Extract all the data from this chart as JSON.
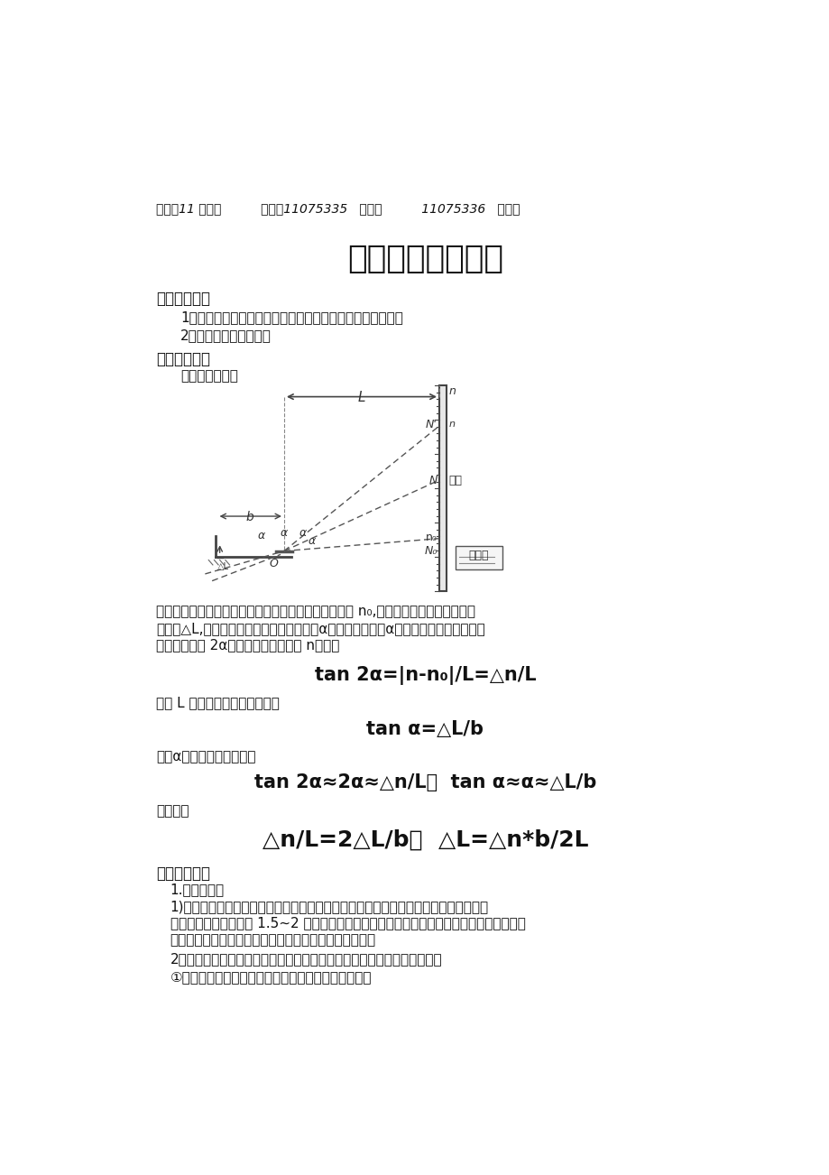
{
  "bg_color": "#ffffff",
  "header_text": "班级：11 级光信          姓名：11075335   倪凯嘉          11075336   刘静宇",
  "title": "玻璃片厚度的测量",
  "s1_title": "一．实验目的",
  "s1_item1": "1）学习光杠杆镜尺法测量微小长度变化的原理和调节方法。",
  "s1_item2": "2）测量玻璃片的厚度。",
  "s2_title": "二．实验原理",
  "s2_sub": "光杠杆原理图：",
  "para1_l1": "在光杆杆后方垫上玻璃片，从望远镜中读取标尺读数为 n₀,然后取下玻璃片，光杆杆后",
  "para1_l2": "脚下降△L,即玻璃片厚度，这时平面镜转过α角，法线也转过α角。根据光的反射定律，",
  "para1_l3": "反射线将转过 2α角，此时标尺刻度为 n，则有",
  "formula1": "tan 2α=|n-n₀|/L=△n/L",
  "para2": "式中 L 为平面镜到标尺的距离。",
  "formula2": "tan α=△L/b",
  "para3": "因为α角很小，所以近似有",
  "formula3": "tan 2α≈2α≈△n/L，  tan α≈α≈△L/b",
  "para4": "由此可得",
  "formula4": "△n/L=2△L/b，  △L=△n*b/2L",
  "s3_title": "三．实验过程",
  "s3_sub1": "1.仪器的调整",
  "s3_p1_l1": "1)将光杠杆放在平台上，在光杠杆后脚垫上薄玻璃片，使镜面大致铅直。尺度望远镜放",
  "s3_p1_l2": "在离光杠杆镜面前方约 1.5~2 米处。调节望远镜上、下位置使它和光杠杆处于同一高度；调",
  "s3_p1_l3": "节望远镜水平舶钉，使望远镜大致水平，标尺大致铅直。",
  "s3_p2": "2）调节望远镜以使能看清标尺像的读数。具体包括以下三个环节的调节；",
  "s3_p3": "①调节目镜，看清十字叉丝。可通过旋转目镜来实现。"
}
